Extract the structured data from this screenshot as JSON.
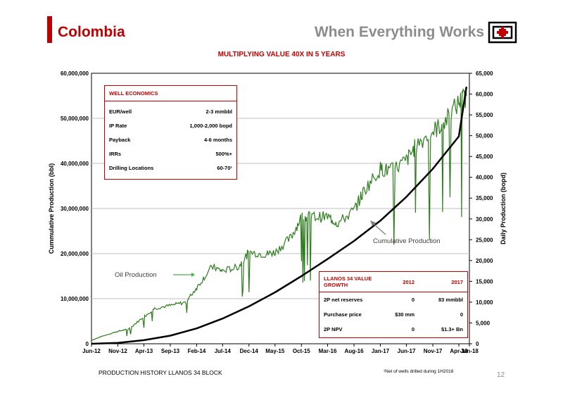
{
  "header": {
    "title": "Colombia",
    "tagline": "When Everything Works"
  },
  "colors": {
    "accent": "#c00000",
    "oil_line": "#2e7d1e",
    "cumulative_line": "#000000",
    "gray_text": "#8c8c8c"
  },
  "chart_data": {
    "type": "line",
    "title": "MULTIPLYING VALUE 40X IN 5 YEARS",
    "ylabel": "Cummulative Production (bbl)",
    "y2label": "Daily Production (bopd)",
    "xlim": [
      "2012-06-01",
      "2018-06-01"
    ],
    "ylim": [
      0,
      60000000
    ],
    "y2lim": [
      0,
      65000
    ],
    "x_ticks": [
      "Jun-12",
      "Nov-12",
      "Apr-13",
      "Sep-13",
      "Feb-14",
      "Jul-14",
      "Dec-14",
      "May-15",
      "Oct-15",
      "Mar-16",
      "Aug-16",
      "Jan-17",
      "Jun-17",
      "Nov-17",
      "Apr-18",
      "Jun-18"
    ],
    "y_ticks": [
      "0",
      "10,000,000",
      "20,000,000",
      "30,000,000",
      "40,000,000",
      "50,000,000",
      "60,000,000"
    ],
    "y2_ticks": [
      "0",
      "5,000",
      "10,000",
      "15,000",
      "20,000",
      "25,000",
      "30,000",
      "35,000",
      "40,000",
      "45,000",
      "50,000",
      "55,000",
      "60,000",
      "65,000"
    ],
    "grid": true,
    "series": [
      {
        "name": "Cumulative Production",
        "axis": "left",
        "x": [
          "2012-06-01",
          "2012-11-01",
          "2013-04-01",
          "2013-09-01",
          "2014-02-01",
          "2014-07-01",
          "2014-12-01",
          "2015-05-01",
          "2015-10-01",
          "2016-03-01",
          "2016-08-01",
          "2017-01-01",
          "2017-06-01",
          "2017-11-01",
          "2018-04-01",
          "2018-05-15"
        ],
        "y": [
          0,
          200000,
          800000,
          1800000,
          3400000,
          5600000,
          8300000,
          11400000,
          15000000,
          18800000,
          22800000,
          27300000,
          32600000,
          38800000,
          46000000,
          57000000
        ]
      },
      {
        "name": "Oil Production",
        "axis": "right",
        "x": [
          "2012-06-01",
          "2012-08-01",
          "2012-11-01",
          "2013-01-01",
          "2013-04-01",
          "2013-06-01",
          "2013-09-01",
          "2013-12-01",
          "2014-02-01",
          "2014-05-01",
          "2014-07-01",
          "2014-10-01",
          "2014-12-01",
          "2015-03-01",
          "2015-05-01",
          "2015-08-01",
          "2015-10-01",
          "2015-12-01",
          "2016-03-01",
          "2016-05-01",
          "2016-08-01",
          "2016-10-01",
          "2017-01-01",
          "2017-03-01",
          "2017-06-01",
          "2017-08-01",
          "2017-11-01",
          "2018-01-01",
          "2018-04-01",
          "2018-05-15"
        ],
        "y": [
          800,
          1800,
          3000,
          3500,
          6500,
          8500,
          9200,
          10000,
          13500,
          18500,
          17500,
          18500,
          22000,
          21500,
          22000,
          25500,
          30500,
          30500,
          30500,
          29000,
          32000,
          37000,
          42000,
          41500,
          44000,
          48000,
          51000,
          53000,
          58000,
          59500
        ]
      }
    ],
    "annotations": [
      {
        "label": "Oil Production",
        "x": "2013-09-01",
        "y2": 17000
      },
      {
        "label": "Cumulative Production",
        "x": "2016-10-01",
        "y2": 31500
      }
    ]
  },
  "well_economics": {
    "title": "WELL ECONOMICS",
    "rows": [
      {
        "label": "EUR/well",
        "value": "2-3 mmbbl"
      },
      {
        "label": "IP Rate",
        "value": "1,000-2,000 bopd"
      },
      {
        "label": "Payback",
        "value": "4-6 months"
      },
      {
        "label": "IRRs",
        "value": "500%+"
      },
      {
        "label": "Drilling Locations",
        "value": "60-70¹"
      }
    ]
  },
  "value_growth": {
    "title": "LLANOS 34 VALUE GROWTH",
    "col1": "2012",
    "col2": "2017",
    "rows": [
      {
        "label": "2P net reserves",
        "v2012": "0",
        "v2017": "83 mmbbl"
      },
      {
        "label": "Purchase price",
        "v2012": "$30 mm",
        "v2017": "0"
      },
      {
        "label": "2P NPV",
        "v2012": "0",
        "v2017": "$1.3+ Bn"
      }
    ]
  },
  "footer": {
    "caption": "PRODUCTION HISTORY LLANOS 34 BLOCK",
    "footnote": "¹Net of wells drilled during 1H2018",
    "page": "12"
  }
}
